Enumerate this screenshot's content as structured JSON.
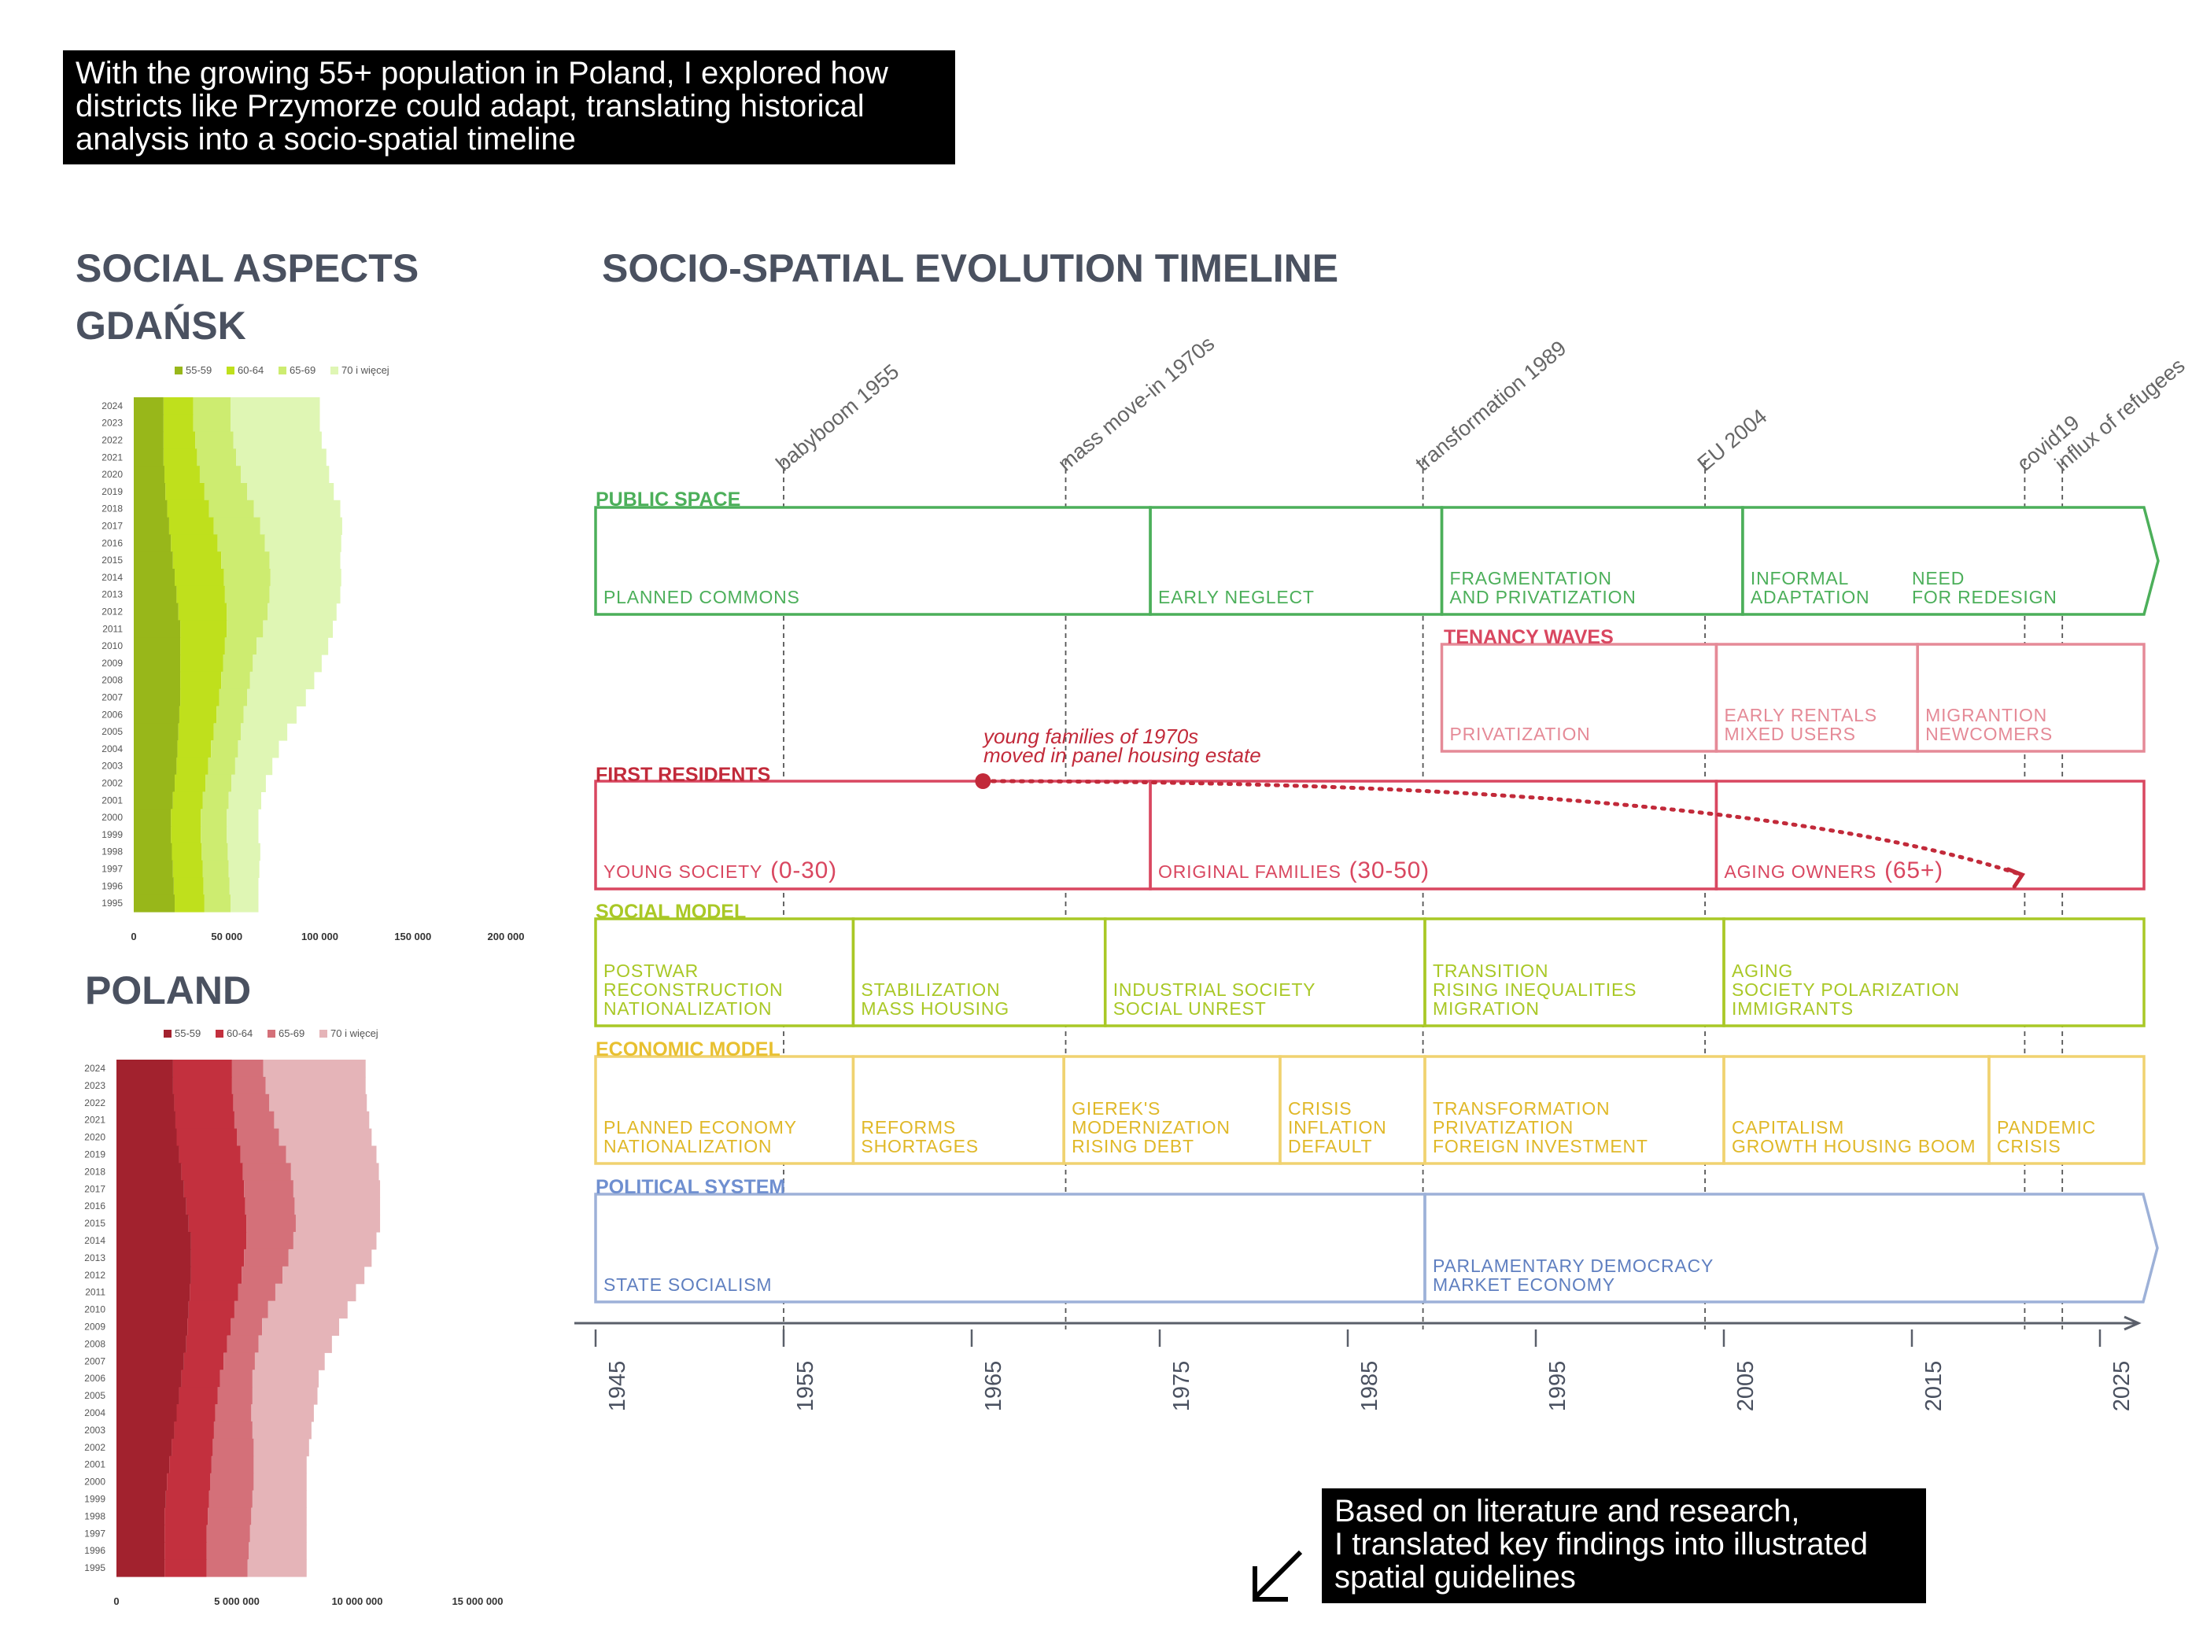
{
  "intro": {
    "lines": [
      "With the growing 55+ population in Poland, I explored how",
      "districts like Przymorze could adapt, translating historical",
      "analysis into a socio-spatial timeline"
    ]
  },
  "outro": {
    "lines": [
      "Based on literature and research,",
      "I translated key findings into illustrated",
      "spatial guidelines"
    ],
    "arrow_icon": "arrow-down-left-icon"
  },
  "titles": {
    "social_aspects": "SOCIAL ASPECTS",
    "gdansk": "GDAŃSK",
    "poland": "POLAND",
    "timeline": "SOCIO-SPATIAL EVOLUTION TIMELINE"
  },
  "chart_data": [
    {
      "type": "area",
      "subtype": "horizontal stacked bar",
      "title": "GDAŃSK",
      "categories": [
        "2024",
        "2023",
        "2022",
        "2021",
        "2020",
        "2019",
        "2018",
        "2017",
        "2016",
        "2015",
        "2014",
        "2013",
        "2012",
        "2011",
        "2010",
        "2009",
        "2008",
        "2007",
        "2006",
        "2005",
        "2004",
        "2003",
        "2002",
        "2001",
        "2000",
        "1999",
        "1998",
        "1997",
        "1996",
        "1995"
      ],
      "series": [
        {
          "name": "55-59",
          "color": "#98b71a",
          "values": [
            16000,
            16000,
            16000,
            16000,
            16500,
            17000,
            18000,
            19000,
            20000,
            21000,
            22000,
            23000,
            24000,
            25000,
            25000,
            25000,
            25000,
            25000,
            24500,
            24000,
            23500,
            23000,
            22000,
            21000,
            20000,
            20000,
            20500,
            21000,
            21500,
            22000
          ]
        },
        {
          "name": "60-64",
          "color": "#bfe01c",
          "values": [
            16000,
            16000,
            17000,
            18000,
            19000,
            21000,
            22500,
            24000,
            25000,
            26000,
            26500,
            26000,
            26000,
            25000,
            24000,
            23000,
            22000,
            21000,
            20000,
            19000,
            18000,
            17000,
            16500,
            16000,
            16000,
            16000,
            16000,
            16000,
            16000,
            16000
          ]
        },
        {
          "name": "65-69",
          "color": "#cdec70",
          "values": [
            20000,
            20000,
            20500,
            21000,
            22000,
            23000,
            24000,
            25000,
            25500,
            26000,
            25000,
            24000,
            22000,
            19500,
            17000,
            16000,
            15500,
            15000,
            14500,
            14500,
            14500,
            14500,
            14000,
            14000,
            14000,
            14000,
            14000,
            14000,
            14000,
            14000
          ]
        },
        {
          "name": "70 i więcej",
          "color": "#dff6b4",
          "values": [
            48000,
            48000,
            47500,
            48500,
            47500,
            46500,
            46500,
            44000,
            41000,
            38000,
            38000,
            38000,
            37000,
            37500,
            38500,
            37000,
            34500,
            31500,
            28500,
            25000,
            22000,
            20000,
            18500,
            17500,
            17000,
            17000,
            17500,
            16500,
            15500,
            15000
          ]
        }
      ],
      "xticks": [
        "0",
        "50 000",
        "100 000",
        "150 000",
        "200 000"
      ],
      "xlim": [
        0,
        200000
      ],
      "legend": "top"
    },
    {
      "type": "area",
      "subtype": "horizontal stacked bar",
      "title": "POLAND",
      "categories": [
        "2024",
        "2023",
        "2022",
        "2021",
        "2020",
        "2019",
        "2018",
        "2017",
        "2016",
        "2015",
        "2014",
        "2013",
        "2012",
        "2011",
        "2010",
        "2009",
        "2008",
        "2007",
        "2006",
        "2005",
        "2004",
        "2003",
        "2002",
        "2001",
        "2000",
        "1999",
        "1998",
        "1997",
        "1996",
        "1995"
      ],
      "series": [
        {
          "name": "55-59",
          "color": "#a2222e",
          "values": [
            2350000,
            2350000,
            2400000,
            2450000,
            2500000,
            2600000,
            2700000,
            2800000,
            2900000,
            3000000,
            3100000,
            3100000,
            3100000,
            3050000,
            3000000,
            2950000,
            2900000,
            2800000,
            2700000,
            2600000,
            2500000,
            2400000,
            2300000,
            2200000,
            2100000,
            2050000,
            2000000,
            2000000,
            2000000,
            2000000
          ]
        },
        {
          "name": "60-64",
          "color": "#c3303e",
          "values": [
            2450000,
            2450000,
            2450000,
            2450000,
            2500000,
            2550000,
            2550000,
            2500000,
            2450000,
            2400000,
            2300000,
            2200000,
            2100000,
            2000000,
            1900000,
            1800000,
            1700000,
            1650000,
            1600000,
            1600000,
            1600000,
            1650000,
            1700000,
            1750000,
            1800000,
            1800000,
            1800000,
            1750000,
            1750000,
            1750000
          ]
        },
        {
          "name": "65-69",
          "color": "#d47079",
          "values": [
            1300000,
            1400000,
            1500000,
            1650000,
            1750000,
            1900000,
            2000000,
            2050000,
            2050000,
            2050000,
            1950000,
            1850000,
            1700000,
            1550000,
            1400000,
            1300000,
            1300000,
            1300000,
            1350000,
            1450000,
            1500000,
            1600000,
            1700000,
            1750000,
            1800000,
            1800000,
            1800000,
            1800000,
            1750000,
            1700000
          ]
        },
        {
          "name": "70 i więcej",
          "color": "#e5b4b8",
          "values": [
            4250000,
            4150000,
            4050000,
            3950000,
            3850000,
            3750000,
            3650000,
            3600000,
            3550000,
            3500000,
            3450000,
            3450000,
            3400000,
            3350000,
            3300000,
            3200000,
            3050000,
            2900000,
            2750000,
            2700000,
            2600000,
            2450000,
            2300000,
            2200000,
            2200000,
            2250000,
            2300000,
            2350000,
            2400000,
            2450000
          ]
        }
      ],
      "xticks": [
        "0",
        "5 000 000",
        "10 000 000",
        "15 000 000"
      ],
      "xlim": [
        0,
        15000000
      ],
      "legend": "top"
    },
    {
      "type": "timeline",
      "title": "SOCIO-SPATIAL EVOLUTION TIMELINE",
      "years": [
        1945,
        1955,
        1965,
        1975,
        1985,
        1995,
        2005,
        2015,
        2025
      ],
      "xlim": [
        1945,
        2028
      ],
      "events": [
        {
          "label": "babyboom 1955",
          "year": 1955
        },
        {
          "label": "mass move-in 1970s",
          "year": 1970
        },
        {
          "label": "transformation 1989",
          "year": 1989
        },
        {
          "label": "EU 2004",
          "year": 2004
        },
        {
          "label": "covid19",
          "year": 2021
        },
        {
          "label": "influx of refugees",
          "year": 2023
        }
      ],
      "lanes": [
        {
          "name": "PUBLIC SPACE",
          "color": "#4caf5a",
          "arrow": true,
          "segments": [
            {
              "start": 1945,
              "end": 1974.5,
              "lines": [
                "PLANNED COMMONS"
              ]
            },
            {
              "start": 1974.5,
              "end": 1990,
              "lines": [
                "EARLY NEGLECT"
              ]
            },
            {
              "start": 1990,
              "end": 2006,
              "lines": [
                "FRAGMENTATION",
                "AND PRIVATIZATION"
              ]
            },
            {
              "start": 2006,
              "end": 2027.5,
              "lines": [
                "INFORMAL",
                "ADAPTATION"
              ],
              "extra": {
                "lines": [
                  "NEED",
                  "FOR REDESIGN"
                ],
                "at": 2015
              }
            }
          ]
        },
        {
          "name": "TENANCY WAVES",
          "color": "#e58a97",
          "title_color": "#d94760",
          "arrow": false,
          "segments": [
            {
              "start": 1990,
              "end": 2004.6,
              "lines": [
                "PRIVATIZATION"
              ]
            },
            {
              "start": 2004.6,
              "end": 2015.3,
              "lines": [
                "EARLY RENTALS",
                "MIXED USERS"
              ]
            },
            {
              "start": 2015.3,
              "end": 2027.6,
              "lines": [
                "MIGRANTION",
                "NEWCOMERS"
              ]
            }
          ]
        },
        {
          "name": "FIRST RESIDENTS",
          "color": "#d94760",
          "title_color": "#c22a3a",
          "arrow": false,
          "segments": [
            {
              "start": 1945,
              "end": 1974.5,
              "lines": [
                "YOUNG SOCIETY"
              ],
              "suffix": "(0-30)"
            },
            {
              "start": 1974.5,
              "end": 2004.6,
              "lines": [
                "ORIGINAL FAMILIES"
              ],
              "suffix": "(30-50)"
            },
            {
              "start": 2004.6,
              "end": 2027.6,
              "lines": [
                "AGING OWNERS"
              ],
              "suffix": "(65+)"
            }
          ]
        },
        {
          "name": "SOCIAL MODEL",
          "color": "#a9c826",
          "arrow": false,
          "segments": [
            {
              "start": 1945,
              "end": 1958.7,
              "lines": [
                "POSTWAR",
                "RECONSTRUCTION",
                "NATIONALIZATION"
              ]
            },
            {
              "start": 1958.7,
              "end": 1972.1,
              "lines": [
                "STABILIZATION",
                "MASS HOUSING"
              ]
            },
            {
              "start": 1972.1,
              "end": 1989.1,
              "lines": [
                "INDUSTRIAL SOCIETY",
                "SOCIAL UNREST"
              ]
            },
            {
              "start": 1989.1,
              "end": 2005,
              "lines": [
                "TRANSITION",
                "RISING INEQUALITIES",
                "MIGRATION"
              ]
            },
            {
              "start": 2005,
              "end": 2027.6,
              "lines": [
                "AGING",
                "SOCIETY POLARIZATION",
                "IMMIGRANTS"
              ]
            }
          ]
        },
        {
          "name": "ECONOMIC MODEL",
          "color": "#f0d270",
          "title_color": "#e8c030",
          "arrow": false,
          "segments": [
            {
              "start": 1945,
              "end": 1958.7,
              "lines": [
                "PLANNED ECONOMY",
                "NATIONALIZATION"
              ]
            },
            {
              "start": 1958.7,
              "end": 1969.9,
              "lines": [
                "REFORMS",
                "SHORTAGES"
              ]
            },
            {
              "start": 1969.9,
              "end": 1981.4,
              "lines": [
                "GIEREK'S",
                "MODERNIZATION",
                "RISING DEBT"
              ]
            },
            {
              "start": 1981.4,
              "end": 1989.1,
              "lines": [
                "CRISIS",
                "INFLATION",
                "DEFAULT"
              ]
            },
            {
              "start": 1989.1,
              "end": 2005,
              "lines": [
                "TRANSFORMATION",
                "PRIVATIZATION",
                "FOREIGN INVESTMENT"
              ]
            },
            {
              "start": 2005,
              "end": 2019.1,
              "lines": [
                "CAPITALISM",
                "GROWTH HOUSING BOOM"
              ]
            },
            {
              "start": 2019.1,
              "end": 2027.6,
              "lines": [
                "PANDEMIC",
                "CRISIS"
              ]
            }
          ]
        },
        {
          "name": "POLITICAL SYSTEM",
          "color": "#9db1d8",
          "title_color": "#6f8fd0",
          "text_color": "#5f7fc0",
          "arrow": true,
          "segments": [
            {
              "start": 1945,
              "end": 1989.1,
              "lines": [
                "STATE SOCIALISM"
              ]
            },
            {
              "start": 1989.1,
              "end": 2027.3,
              "lines": [
                "PARLAMENTARY DEMOCRACY",
                "MARKET ECONOMY"
              ]
            }
          ]
        }
      ],
      "annotation": {
        "lines": [
          "young families of 1970s",
          "moved in panel housing estate"
        ],
        "color": "#c22a3a",
        "start_year": 1965.6,
        "end_year": 2020.7
      }
    }
  ]
}
